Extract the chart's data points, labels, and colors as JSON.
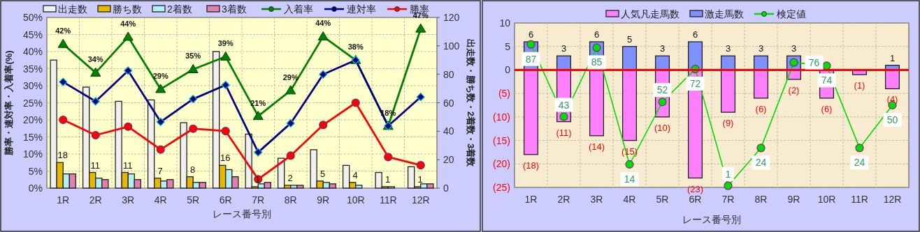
{
  "chart_data": [
    {
      "type": "bar",
      "categories": [
        "1R",
        "2R",
        "3R",
        "4R",
        "5R",
        "6R",
        "7R",
        "8R",
        "9R",
        "10R",
        "11R",
        "12R"
      ],
      "series": [
        {
          "name": "出走数",
          "color": "#f0f0f0",
          "axis": "y2",
          "values": [
            90,
            71,
            61,
            62,
            46,
            96,
            38,
            21,
            27,
            16,
            11,
            15
          ]
        },
        {
          "name": "勝ち数",
          "color": "#e6b800",
          "axis": "y2",
          "values": [
            18,
            11,
            11,
            7,
            8,
            16,
            1,
            2,
            5,
            4,
            1,
            1
          ],
          "value_labels": [
            "18",
            "11",
            "11",
            "7",
            "8",
            "16",
            "1",
            "2",
            "5",
            "4",
            "1",
            "1"
          ]
        },
        {
          "name": "2着数",
          "color": "#b0f0f0",
          "axis": "y2",
          "values": [
            10,
            7,
            10,
            5,
            4,
            13,
            3,
            2,
            4,
            2,
            1,
            3
          ]
        },
        {
          "name": "3着数",
          "color": "#e080b0",
          "axis": "y2",
          "values": [
            10,
            6,
            6,
            6,
            4,
            8,
            4,
            2,
            3,
            0,
            0,
            3
          ]
        },
        {
          "name": "入着率",
          "type": "line",
          "color": "#008000",
          "marker": "triangle",
          "values": [
            42.2,
            33.8,
            44.3,
            29.0,
            34.8,
            38.5,
            21.1,
            28.6,
            44.4,
            37.5,
            18.2,
            46.7
          ],
          "value_labels": [
            "42%",
            "34%",
            "44%",
            "29%",
            "35%",
            "39%",
            "21%",
            "29%",
            "44%",
            "38%",
            "18%",
            "47%"
          ]
        },
        {
          "name": "連対率",
          "type": "line",
          "color": "#000080",
          "marker": "diamond",
          "values": [
            31.1,
            25.4,
            34.4,
            19.4,
            26.1,
            30.2,
            10.5,
            19.0,
            33.3,
            37.5,
            18.2,
            26.7
          ]
        },
        {
          "name": "勝率",
          "type": "line",
          "color": "#ff0000",
          "marker": "circle",
          "values": [
            20.0,
            15.5,
            18.0,
            11.3,
            17.4,
            16.7,
            2.6,
            9.5,
            18.5,
            25.0,
            9.1,
            6.7
          ]
        }
      ],
      "ylim": [
        0,
        50
      ],
      "yticks": [
        {
          "value": 0,
          "label": "0%"
        },
        {
          "value": 5,
          "label": "5%"
        },
        {
          "value": 10,
          "label": "10%"
        },
        {
          "value": 15,
          "label": "15%"
        },
        {
          "value": 20,
          "label": "20%"
        },
        {
          "value": 25,
          "label": "25%"
        },
        {
          "value": 30,
          "label": "30%"
        },
        {
          "value": 35,
          "label": "35%"
        },
        {
          "value": 40,
          "label": "40%"
        },
        {
          "value": 45,
          "label": "45%"
        },
        {
          "value": 50,
          "label": "50%"
        }
      ],
      "y2lim": [
        0,
        120
      ],
      "y2ticks": [
        0,
        20,
        40,
        60,
        80,
        100,
        120
      ],
      "xlabel": "レース番号別",
      "ylabel": "勝率・連対率・入着率(%)",
      "y2label": "出走数・勝ち数・2着数・3着数",
      "grid": true,
      "legend": "top"
    },
    {
      "type": "bar",
      "stacked": true,
      "categories": [
        "1R",
        "2R",
        "3R",
        "4R",
        "5R",
        "6R",
        "7R",
        "8R",
        "9R",
        "10R",
        "11R",
        "12R"
      ],
      "series": [
        {
          "name": "人気凡走馬数",
          "color": "#ff80ff",
          "values": [
            -18,
            -11,
            -14,
            -15,
            -10,
            -23,
            -9,
            -6,
            -2,
            -6,
            -1,
            -4
          ],
          "value_labels": [
            "(18)",
            "(11)",
            "(14)",
            "(15)",
            "(10)",
            "(23)",
            "(9)",
            "(6)",
            "(2)",
            "(6)",
            "(1)",
            "(4)"
          ]
        },
        {
          "name": "激走馬数",
          "color": "#8090ff",
          "values": [
            6,
            3,
            6,
            5,
            3,
            6,
            3,
            3,
            3,
            null,
            null,
            1
          ],
          "value_labels": [
            "6",
            "3",
            "6",
            "5",
            "3",
            "6",
            "3",
            "3",
            "3",
            null,
            null,
            "1"
          ]
        },
        {
          "name": "検定値",
          "type": "line",
          "axis": "y2",
          "color": "#00dd00",
          "marker": "circle",
          "values": [
            87,
            43,
            85,
            14,
            52,
            72,
            1,
            24,
            76,
            74,
            24,
            50
          ],
          "value_labels": [
            "87",
            "43",
            "85",
            "14",
            "52",
            "72",
            "1",
            "24",
            "76",
            "74",
            "24",
            "50"
          ]
        }
      ],
      "ylim": [
        -25,
        10
      ],
      "yticks": [
        {
          "value": 10,
          "label": "10"
        },
        {
          "value": 5,
          "label": "5"
        },
        {
          "value": 0,
          "label": "0"
        },
        {
          "value": -5,
          "label": "(5)"
        },
        {
          "value": -10,
          "label": "(10)"
        },
        {
          "value": -15,
          "label": "(15)"
        },
        {
          "value": -20,
          "label": "(20)"
        },
        {
          "value": -25,
          "label": "(25)"
        }
      ],
      "y2lim": [
        0,
        100
      ],
      "ref_lines": [
        {
          "axis": "y",
          "value": 0,
          "color": "#ff0000"
        }
      ],
      "xlabel": "レース番号別",
      "grid": true,
      "legend": "top"
    }
  ]
}
